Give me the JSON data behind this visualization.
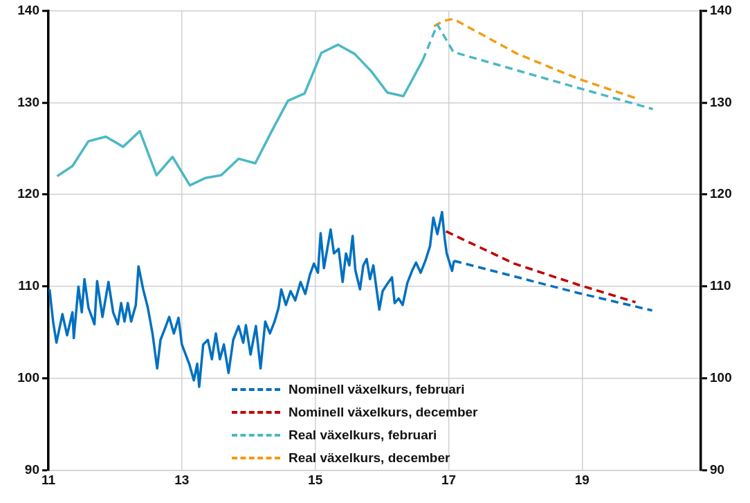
{
  "chart_data": {
    "type": "line",
    "xlim": [
      11,
      20.78
    ],
    "xticks": [
      11,
      13,
      15,
      17,
      19
    ],
    "ylim": [
      90,
      140
    ],
    "yticks": [
      90,
      100,
      110,
      120,
      130,
      140
    ],
    "y2lim": [
      90,
      140
    ],
    "y2ticks": [
      90,
      100,
      110,
      120,
      130,
      140
    ],
    "grid": true,
    "legend": "bottom",
    "marker": "none",
    "series": [
      {
        "color": "#0070c0",
        "line_style": "solid",
        "x": [
          11.017,
          11.07,
          11.12,
          11.21,
          11.28,
          11.36,
          11.38,
          11.45,
          11.5,
          11.54,
          11.6,
          11.69,
          11.73,
          11.81,
          11.9,
          11.97,
          12.04,
          12.09,
          12.14,
          12.19,
          12.24,
          12.31,
          12.35,
          12.42,
          12.49,
          12.56,
          12.63,
          12.68,
          12.76,
          12.81,
          12.88,
          12.95,
          13.0,
          13.11,
          13.18,
          13.23,
          13.26,
          13.32,
          13.39,
          13.45,
          13.51,
          13.57,
          13.63,
          13.7,
          13.77,
          13.85,
          13.92,
          13.96,
          14.03,
          14.11,
          14.18,
          14.25,
          14.32,
          14.39,
          14.45,
          14.49,
          14.56,
          14.63,
          14.7,
          14.78,
          14.85,
          14.92,
          14.98,
          15.04,
          15.08,
          15.13,
          15.18,
          15.23,
          15.28,
          15.35,
          15.41,
          15.46,
          15.51,
          15.56,
          15.6,
          15.67,
          15.72,
          15.77,
          15.82,
          15.87,
          15.96,
          16.01,
          16.08,
          16.15,
          16.19,
          16.25,
          16.31,
          16.38,
          16.45,
          16.51,
          16.58,
          16.65,
          16.72,
          16.77,
          16.83,
          16.9,
          16.94,
          16.97,
          17.03,
          17.05,
          17.08
        ],
        "values": [
          109.7,
          106.2,
          103.9,
          107.0,
          104.7,
          107.2,
          104.4,
          110.0,
          107.2,
          110.8,
          107.7,
          105.9,
          110.6,
          106.7,
          110.5,
          107.2,
          105.9,
          108.2,
          106.2,
          108.2,
          106.2,
          108.0,
          112.2,
          109.7,
          107.7,
          104.9,
          101.1,
          104.2,
          105.7,
          106.7,
          104.9,
          106.6,
          103.7,
          101.6,
          99.8,
          101.6,
          99.1,
          103.7,
          104.2,
          102.1,
          104.9,
          102.1,
          103.7,
          100.6,
          104.2,
          105.7,
          103.9,
          105.8,
          102.6,
          105.7,
          101.1,
          106.2,
          104.9,
          106.2,
          107.7,
          109.7,
          108.0,
          109.5,
          108.5,
          110.5,
          109.2,
          111.3,
          112.5,
          111.5,
          115.8,
          112.0,
          114.1,
          116.2,
          113.6,
          114.1,
          110.5,
          113.6,
          112.3,
          115.5,
          111.8,
          109.7,
          112.3,
          113.0,
          110.8,
          112.3,
          107.5,
          109.5,
          110.3,
          111.0,
          108.2,
          108.7,
          108.0,
          110.4,
          111.7,
          112.6,
          111.5,
          112.8,
          114.4,
          117.5,
          115.7,
          118.1,
          115.2,
          113.6,
          112.2,
          111.7,
          112.8
        ]
      },
      {
        "color": "#4bb8c4",
        "line_style": "solid",
        "x": [
          11.13,
          11.36,
          11.6,
          11.86,
          12.12,
          12.37,
          12.62,
          12.86,
          13.12,
          13.35,
          13.59,
          13.85,
          14.1,
          14.34,
          14.59,
          14.84,
          15.09,
          15.34,
          15.59,
          15.84,
          16.08,
          16.32,
          16.61
        ],
        "values": [
          122.0,
          123.1,
          125.8,
          126.3,
          125.2,
          126.9,
          122.1,
          124.1,
          121.0,
          121.8,
          122.1,
          123.9,
          123.4,
          126.8,
          130.2,
          131.0,
          135.4,
          136.3,
          135.3,
          133.4,
          131.1,
          130.7,
          134.6
        ]
      },
      {
        "name": "Nominell växelkurs, februari",
        "color": "#0070c0",
        "line_style": "dashed",
        "x": [
          17.08,
          18.94,
          20.05
        ],
        "values": [
          112.8,
          109.3,
          107.4
        ]
      },
      {
        "name": "Nominell växelkurs, december",
        "color": "#c00000",
        "line_style": "dashed",
        "x": [
          16.96,
          17.98,
          18.94,
          19.8
        ],
        "values": [
          116.0,
          112.5,
          110.2,
          108.3
        ]
      },
      {
        "name": "Real växelkurs, februari",
        "color": "#4bb8c4",
        "line_style": "dashed",
        "x": [
          16.61,
          16.83,
          17.07,
          18.94,
          20.06
        ],
        "values": [
          134.6,
          138.5,
          135.5,
          131.6,
          129.3
        ]
      },
      {
        "name": "Real växelkurs, december",
        "color": "#f39c12",
        "line_style": "dashed",
        "x": [
          16.78,
          16.92,
          17.07,
          18.03,
          18.94,
          19.8
        ],
        "values": [
          138.3,
          138.9,
          139.1,
          135.3,
          132.6,
          130.5
        ]
      }
    ]
  }
}
